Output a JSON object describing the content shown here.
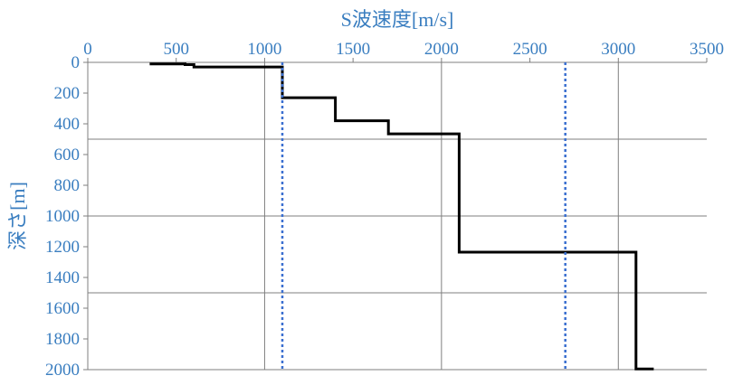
{
  "chart_data": {
    "type": "line",
    "xlabel": "S波速度[m/s]",
    "ylabel": "深さ[m]",
    "xlim": [
      0,
      3500
    ],
    "ylim": [
      0,
      2000
    ],
    "y_inverted": true,
    "x_axis_position": "top",
    "x_ticks": [
      0,
      500,
      1000,
      1500,
      2000,
      2500,
      3000,
      3500
    ],
    "y_ticks": [
      0,
      200,
      400,
      600,
      800,
      1000,
      1200,
      1400,
      1600,
      1800,
      2000
    ],
    "x_gridlines": [
      1000,
      2000,
      3000
    ],
    "y_gridlines": [
      500,
      1000,
      1500
    ],
    "colors": {
      "axis_text": "#3a7ec0",
      "profile": "#000000",
      "reference": "#3a6fd0",
      "grid": "#7f7f7f"
    },
    "series": [
      {
        "style": "solid",
        "points": [
          [
            350,
            10
          ],
          [
            550,
            10
          ],
          [
            550,
            15
          ],
          [
            600,
            15
          ],
          [
            600,
            30
          ],
          [
            1100,
            30
          ],
          [
            1100,
            230
          ],
          [
            1400,
            230
          ],
          [
            1400,
            380
          ],
          [
            1700,
            380
          ],
          [
            1700,
            465
          ],
          [
            2100,
            465
          ],
          [
            2100,
            1235
          ],
          [
            3100,
            1235
          ],
          [
            3100,
            1995
          ],
          [
            3200,
            1995
          ]
        ]
      },
      {
        "style": "dotted",
        "points": [
          [
            1100,
            0
          ],
          [
            1100,
            2000
          ]
        ]
      },
      {
        "style": "dotted",
        "points": [
          [
            2700,
            0
          ],
          [
            2700,
            2000
          ]
        ]
      }
    ]
  }
}
